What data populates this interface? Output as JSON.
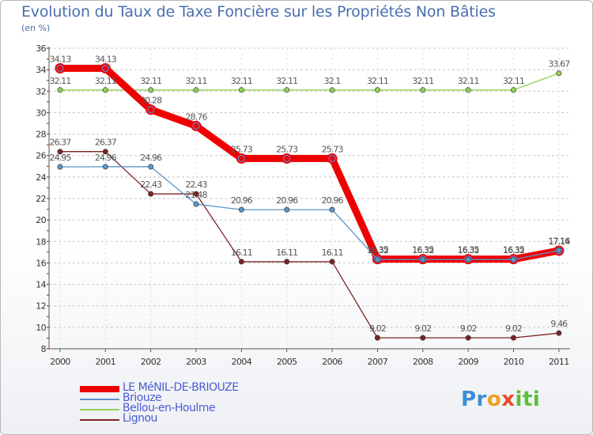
{
  "title": "Evolution du Taux de Taxe Foncière sur les Propriétés Non Bâties",
  "unit": "(en %)",
  "logo": {
    "text": "Proxiti"
  },
  "chart_data": {
    "type": "line",
    "title": "Evolution du Taux de Taxe Foncière sur les Propriétés Non Bâties",
    "ylabel": "(en %)",
    "xlabel": "",
    "x": [
      "2000",
      "2001",
      "2002",
      "2003",
      "2004",
      "2005",
      "2006",
      "2007",
      "2008",
      "2009",
      "2010",
      "2011"
    ],
    "ylim": [
      8,
      36
    ],
    "yticks": [
      8,
      10,
      12,
      14,
      16,
      18,
      20,
      22,
      24,
      26,
      28,
      30,
      32,
      34,
      36
    ],
    "grid": "horizontal-dashed",
    "series": [
      {
        "name": "LE MéNIL-DE-BRIOUZE",
        "color": "#ee0000",
        "values": [
          34.13,
          34.13,
          30.28,
          28.76,
          25.73,
          25.73,
          25.73,
          16.35,
          16.35,
          16.35,
          16.35,
          17.14
        ],
        "labels": [
          "34.13",
          "34.13",
          "30.28",
          "28.76",
          "25.73",
          "25.73",
          "25.73",
          "16.35",
          "16.35",
          "16.35",
          "16.35",
          "17.14"
        ]
      },
      {
        "name": "Briouze",
        "color": "#5b95c8",
        "values": [
          24.95,
          24.96,
          24.96,
          21.48,
          20.96,
          20.96,
          20.96,
          16.32,
          16.32,
          16.32,
          16.32,
          17.16
        ],
        "labels": [
          "24.95",
          "24.96",
          "24.96",
          "21.48",
          "20.96",
          "20.96",
          "20.96",
          "16.32",
          "16.32",
          "16.32",
          "16.32",
          "17.16"
        ]
      },
      {
        "name": "Bellou-en-Houlme",
        "color": "#8ed055",
        "values": [
          32.11,
          32.11,
          32.11,
          32.11,
          32.11,
          32.11,
          32.1,
          32.11,
          32.11,
          32.11,
          32.11,
          33.67
        ],
        "labels": [
          "32.11",
          "32.11",
          "32.11",
          "32.11",
          "32.11",
          "32.11",
          "32.1",
          "32.11",
          "32.11",
          "32.11",
          "32.11",
          "33.67"
        ]
      },
      {
        "name": "Lignou",
        "color": "#7d2323",
        "values": [
          26.37,
          26.37,
          22.43,
          22.43,
          16.11,
          16.11,
          16.11,
          9.02,
          9.02,
          9.02,
          9.02,
          9.46
        ],
        "labels": [
          "26.37",
          "26.37",
          "22.43",
          "22.43",
          "16.11",
          "16.11",
          "16.11",
          "9.02",
          "9.02",
          "9.02",
          "9.02",
          "9.46"
        ]
      }
    ],
    "legend": [
      {
        "name": "LE MéNIL-DE-BRIOUZE",
        "color": "#ee0000"
      },
      {
        "name": "Briouze",
        "color": "#5b95c8"
      },
      {
        "name": "Bellou-en-Houlme",
        "color": "#8ed055"
      },
      {
        "name": "Lignou",
        "color": "#7d2323"
      }
    ]
  }
}
